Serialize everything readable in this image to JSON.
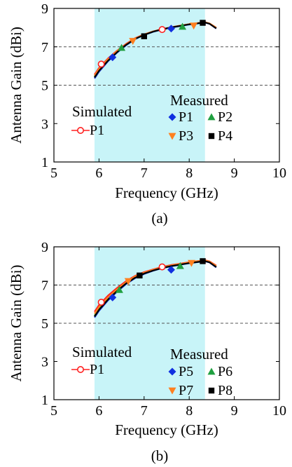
{
  "panels": [
    {
      "caption": "(a)",
      "simulated_label": "Simulated",
      "measured_label": "Measured",
      "chart_data": {
        "type": "line",
        "xlabel": "Frequency (GHz)",
        "ylabel": "Antenna Gain (dBi)",
        "xlim": [
          5,
          10
        ],
        "ylim": [
          1,
          9
        ],
        "xticks": [
          "5",
          "6",
          "7",
          "8",
          "9",
          "10"
        ],
        "yticks": [
          "1",
          "3",
          "5",
          "7",
          "9"
        ],
        "dashed_gridlines_y": [
          5,
          7
        ],
        "band": [
          5.9,
          8.35
        ],
        "band_color": "#c8f4f8",
        "curves": [
          {
            "color": "#ff2020",
            "x": [
              5.9,
              6.0,
              6.2,
              6.4,
              6.6,
              6.8,
              7.0,
              7.2,
              7.4,
              7.6,
              7.8,
              8.0,
              8.2,
              8.35,
              8.45,
              8.6
            ],
            "y": [
              5.55,
              5.9,
              6.4,
              6.8,
              7.15,
              7.45,
              7.65,
              7.8,
              7.92,
              8.02,
              8.1,
              8.18,
              8.24,
              8.28,
              8.22,
              8.0
            ]
          },
          {
            "color": "#2040e0",
            "x": [
              5.9,
              6.0,
              6.2,
              6.4,
              6.6,
              6.8,
              7.0,
              7.2,
              7.4,
              7.6,
              7.8,
              8.0,
              8.2,
              8.35,
              8.45,
              8.6
            ],
            "y": [
              5.35,
              5.7,
              6.25,
              6.7,
              7.08,
              7.4,
              7.62,
              7.78,
              7.9,
              8.0,
              8.08,
              8.16,
              8.22,
              8.26,
              8.2,
              7.95
            ]
          },
          {
            "color": "#20a040",
            "x": [
              5.9,
              6.0,
              6.2,
              6.4,
              6.6,
              6.8,
              7.0,
              7.2,
              7.4,
              7.6,
              7.8,
              8.0,
              8.2,
              8.35,
              8.45,
              8.6
            ],
            "y": [
              5.45,
              5.8,
              6.32,
              6.75,
              7.1,
              7.42,
              7.63,
              7.79,
              7.91,
              8.01,
              8.09,
              8.17,
              8.23,
              8.27,
              8.21,
              7.98
            ]
          },
          {
            "color": "#ff8020",
            "x": [
              5.9,
              6.0,
              6.2,
              6.4,
              6.6,
              6.8,
              7.0,
              7.2,
              7.4,
              7.6,
              7.8,
              8.0,
              8.2,
              8.35,
              8.45,
              8.6
            ],
            "y": [
              5.5,
              5.85,
              6.36,
              6.78,
              7.13,
              7.44,
              7.64,
              7.8,
              7.92,
              8.02,
              8.1,
              8.18,
              8.24,
              8.28,
              8.22,
              8.0
            ]
          },
          {
            "color": "#000000",
            "x": [
              5.9,
              6.0,
              6.2,
              6.4,
              6.6,
              6.8,
              7.0,
              7.2,
              7.4,
              7.6,
              7.8,
              8.0,
              8.2,
              8.35,
              8.45,
              8.6
            ],
            "y": [
              5.4,
              5.75,
              6.28,
              6.72,
              7.1,
              7.41,
              7.62,
              7.79,
              7.91,
              8.01,
              8.09,
              8.17,
              8.23,
              8.27,
              8.2,
              7.96
            ]
          }
        ],
        "series": [
          {
            "name": "P1",
            "group": "Simulated",
            "marker": "circle-open",
            "color": "#ff2020",
            "x": [
              6.05,
              7.4
            ],
            "y": [
              6.1,
              7.9
            ]
          },
          {
            "name": "P1",
            "group": "Measured",
            "marker": "diamond",
            "color": "#1030e0",
            "x": [
              6.3,
              7.6
            ],
            "y": [
              6.45,
              7.95
            ]
          },
          {
            "name": "P2",
            "group": "Measured",
            "marker": "triangle-up",
            "color": "#20a040",
            "x": [
              6.5,
              7.85
            ],
            "y": [
              6.95,
              8.05
            ]
          },
          {
            "name": "P3",
            "group": "Measured",
            "marker": "triangle-down",
            "color": "#ff8020",
            "x": [
              6.75,
              8.1
            ],
            "y": [
              7.3,
              8.1
            ]
          },
          {
            "name": "P4",
            "group": "Measured",
            "marker": "square",
            "color": "#000000",
            "x": [
              7.0,
              8.3
            ],
            "y": [
              7.55,
              8.25
            ]
          }
        ]
      }
    },
    {
      "caption": "(b)",
      "simulated_label": "Simulated",
      "measured_label": "Measured",
      "chart_data": {
        "type": "line",
        "xlabel": "Frequency (GHz)",
        "ylabel": "Antenna Gain (dBi)",
        "xlim": [
          5,
          10
        ],
        "ylim": [
          1,
          9
        ],
        "xticks": [
          "5",
          "6",
          "7",
          "8",
          "9",
          "10"
        ],
        "yticks": [
          "1",
          "3",
          "5",
          "7",
          "9"
        ],
        "dashed_gridlines_y": [
          5,
          7
        ],
        "band": [
          5.9,
          8.35
        ],
        "band_color": "#c8f4f8",
        "curves": [
          {
            "color": "#ff2020",
            "x": [
              5.9,
              6.0,
              6.2,
              6.4,
              6.6,
              6.8,
              7.0,
              7.2,
              7.4,
              7.6,
              7.8,
              8.0,
              8.2,
              8.35,
              8.45,
              8.6
            ],
            "y": [
              5.6,
              5.95,
              6.45,
              6.85,
              7.2,
              7.48,
              7.68,
              7.82,
              7.95,
              8.05,
              8.12,
              8.2,
              8.26,
              8.3,
              8.24,
              8.02
            ]
          },
          {
            "color": "#2040e0",
            "x": [
              5.9,
              6.0,
              6.2,
              6.4,
              6.6,
              6.8,
              7.0,
              7.2,
              7.4,
              7.6,
              7.8,
              8.0,
              8.2,
              8.35,
              8.45,
              8.6
            ],
            "y": [
              5.3,
              5.65,
              6.2,
              6.65,
              7.05,
              7.36,
              7.58,
              7.75,
              7.88,
              7.98,
              8.06,
              8.14,
              8.2,
              8.24,
              8.18,
              7.92
            ]
          },
          {
            "color": "#20a040",
            "x": [
              5.9,
              6.0,
              6.2,
              6.4,
              6.6,
              6.8,
              7.0,
              7.2,
              7.4,
              7.6,
              7.8,
              8.0,
              8.2,
              8.35,
              8.45,
              8.6
            ],
            "y": [
              5.4,
              5.75,
              6.28,
              6.72,
              7.1,
              7.4,
              7.61,
              7.77,
              7.9,
              8.0,
              8.08,
              8.16,
              8.22,
              8.26,
              8.2,
              7.96
            ]
          },
          {
            "color": "#ff8020",
            "x": [
              5.9,
              6.0,
              6.2,
              6.4,
              6.6,
              6.8,
              7.0,
              7.2,
              7.4,
              7.6,
              7.8,
              8.0,
              8.2,
              8.35,
              8.45,
              8.6
            ],
            "y": [
              5.5,
              5.85,
              6.36,
              6.78,
              7.15,
              7.45,
              7.65,
              7.8,
              7.93,
              8.03,
              8.11,
              8.19,
              8.25,
              8.29,
              8.23,
              8.0
            ]
          },
          {
            "color": "#000000",
            "x": [
              5.9,
              6.0,
              6.2,
              6.4,
              6.6,
              6.8,
              7.0,
              7.2,
              7.4,
              7.6,
              7.8,
              8.0,
              8.2,
              8.35,
              8.45,
              8.6
            ],
            "y": [
              5.35,
              5.7,
              6.24,
              6.69,
              7.08,
              7.38,
              7.6,
              7.76,
              7.89,
              7.99,
              8.07,
              8.15,
              8.21,
              8.25,
              8.19,
              7.94
            ]
          }
        ],
        "series": [
          {
            "name": "P1",
            "group": "Simulated",
            "marker": "circle-open",
            "color": "#ff2020",
            "x": [
              6.05,
              7.4
            ],
            "y": [
              6.1,
              7.95
            ]
          },
          {
            "name": "P5",
            "group": "Measured",
            "marker": "diamond",
            "color": "#1030e0",
            "x": [
              6.3,
              7.6
            ],
            "y": [
              6.35,
              7.8
            ]
          },
          {
            "name": "P6",
            "group": "Measured",
            "marker": "triangle-up",
            "color": "#20a040",
            "x": [
              6.45,
              7.8
            ],
            "y": [
              6.75,
              8.0
            ]
          },
          {
            "name": "P7",
            "group": "Measured",
            "marker": "triangle-down",
            "color": "#ff8020",
            "x": [
              6.65,
              8.05
            ],
            "y": [
              7.2,
              8.15
            ]
          },
          {
            "name": "P8",
            "group": "Measured",
            "marker": "square",
            "color": "#000000",
            "x": [
              6.9,
              8.3
            ],
            "y": [
              7.5,
              8.25
            ]
          }
        ]
      }
    }
  ]
}
